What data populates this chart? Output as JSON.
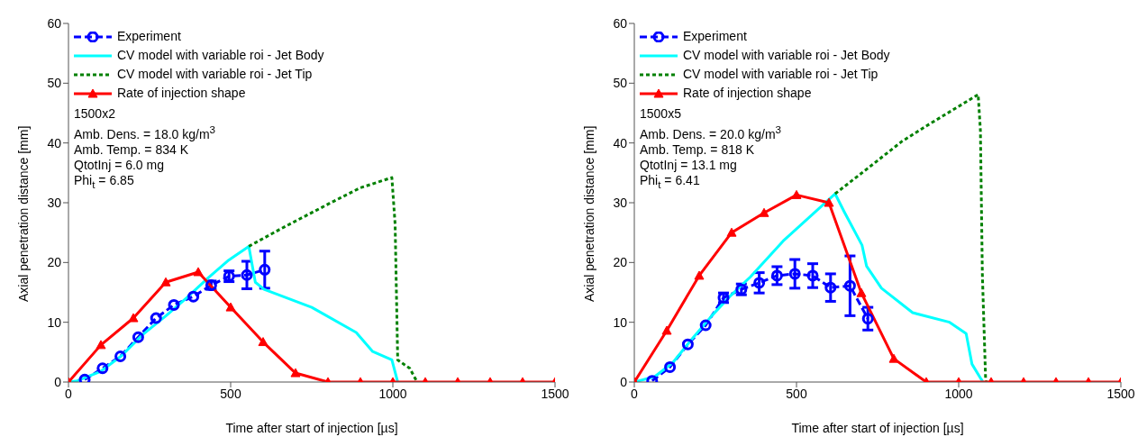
{
  "chart_data": [
    {
      "type": "line",
      "xlabel": "Time after start of injection [µs]",
      "ylabel": "Axial penetration distance [mm]",
      "xlim": [
        0,
        1500
      ],
      "xticks": [
        0,
        500,
        1000,
        1500
      ],
      "ylim": [
        0,
        60
      ],
      "yticks": [
        0,
        10,
        20,
        30,
        40,
        50,
        60
      ],
      "legend": "top left",
      "annotations": [
        "1500x2",
        "Amb. Dens. = 18.0 kg/m$^{3}$",
        "Amb. Temp. = 834 K",
        "QtotInj = 6.0 mg",
        "Phi$_{t}$ = 6.85"
      ],
      "series": [
        {
          "name": "Experiment",
          "color": "#0000ff",
          "marker": "circle",
          "line_style": "dashed",
          "x": [
            50,
            105,
            160,
            215,
            270,
            325,
            385,
            440,
            495,
            550,
            605
          ],
          "values": [
            0.4,
            2.3,
            4.3,
            7.5,
            10.7,
            12.9,
            14.3,
            16.2,
            17.7,
            17.9,
            18.8
          ],
          "errors": [
            null,
            null,
            null,
            null,
            null,
            null,
            null,
            0.7,
            0.9,
            2.3,
            3.1
          ]
        },
        {
          "name": "CV model with variable roi - Jet Body",
          "color": "#00ffff",
          "marker": "none",
          "line_style": "solid",
          "x": [
            0,
            27,
            100,
            164,
            228,
            301,
            365,
            430,
            494,
            556,
            576,
            603,
            750,
            887,
            938,
            997,
            1015
          ],
          "values": [
            0,
            0.2,
            1.8,
            4.4,
            7.9,
            11.1,
            14.1,
            17.4,
            20.4,
            22.7,
            16.7,
            15.5,
            12.5,
            8.3,
            5.1,
            3.7,
            0
          ]
        },
        {
          "name": "CV model with variable roi - Jet Tip",
          "color": "#008000",
          "marker": "none",
          "line_style": "dotted",
          "x": [
            556,
            650,
            805,
            900,
            997,
            1007,
            1015,
            1052,
            1075
          ],
          "values": [
            22.7,
            25.5,
            29.9,
            32.5,
            34.2,
            26.4,
            3.7,
            2.3,
            0
          ]
        },
        {
          "name": "Rate of injection shape",
          "color": "#ff0000",
          "marker": "triangle",
          "line_style": "solid",
          "x": [
            0,
            100,
            200,
            300,
            400,
            500,
            600,
            700,
            800,
            900,
            1000,
            1100,
            1200,
            1300,
            1400,
            1500
          ],
          "values": [
            0,
            6.2,
            10.7,
            16.7,
            18.4,
            12.5,
            6.7,
            1.5,
            0,
            0,
            0,
            0,
            0,
            0,
            0,
            0
          ]
        }
      ]
    },
    {
      "type": "line",
      "xlabel": "Time after start of injection [µs]",
      "ylabel": "Axial penetration distance [mm]",
      "xlim": [
        0,
        1500
      ],
      "xticks": [
        0,
        500,
        1000,
        1500
      ],
      "ylim": [
        0,
        60
      ],
      "yticks": [
        0,
        10,
        20,
        30,
        40,
        50,
        60
      ],
      "legend": "top left",
      "annotations": [
        "1500x5",
        "Amb. Dens. = 20.0 kg/m$^{3}$",
        "Amb. Temp. = 818 K",
        "QtotInj = 13.1 mg",
        "Phi$_{t}$ = 6.41"
      ],
      "series": [
        {
          "name": "Experiment",
          "color": "#0000ff",
          "marker": "circle",
          "line_style": "dashed",
          "x": [
            55,
            110,
            165,
            220,
            275,
            330,
            385,
            440,
            495,
            550,
            605,
            665,
            720
          ],
          "values": [
            0.2,
            2.5,
            6.3,
            9.5,
            14.1,
            15.5,
            16.6,
            17.8,
            18.1,
            17.8,
            15.8,
            16.1,
            10.6
          ],
          "errors": [
            null,
            null,
            null,
            null,
            0.8,
            0.9,
            1.7,
            1.5,
            2.4,
            2.0,
            2.3,
            5.0,
            1.9
          ]
        },
        {
          "name": "CV model with variable roi - Jet Body",
          "color": "#00ffff",
          "marker": "none",
          "line_style": "solid",
          "x": [
            0,
            63,
            118,
            173,
            239,
            294,
            358,
            459,
            619,
            647,
            702,
            716,
            762,
            858,
            972,
            1023,
            1041,
            1069,
            1075
          ],
          "values": [
            0,
            0.9,
            3.2,
            6.9,
            11.1,
            14.3,
            17.6,
            23.6,
            31.5,
            28.5,
            22.9,
            19.4,
            15.7,
            11.6,
            10,
            8.1,
            3,
            0.5,
            0
          ]
        },
        {
          "name": "CV model with variable roi - Jet Tip",
          "color": "#008000",
          "marker": "none",
          "line_style": "dotted",
          "x": [
            619,
            716,
            826,
            899,
            1060,
            1067,
            1073,
            1083,
            1085
          ],
          "values": [
            31.5,
            35.6,
            40.3,
            42.8,
            48.1,
            42.1,
            18,
            0.5,
            0
          ]
        },
        {
          "name": "Rate of injection shape",
          "color": "#ff0000",
          "marker": "triangle",
          "line_style": "solid",
          "x": [
            0,
            100,
            200,
            300,
            400,
            500,
            600,
            700,
            800,
            900,
            1000,
            1100,
            1200,
            1300,
            1400,
            1500
          ],
          "values": [
            0,
            8.6,
            17.8,
            25,
            28.3,
            31.3,
            30,
            14.9,
            3.9,
            0,
            0,
            0,
            0,
            0,
            0,
            0
          ]
        }
      ]
    }
  ]
}
